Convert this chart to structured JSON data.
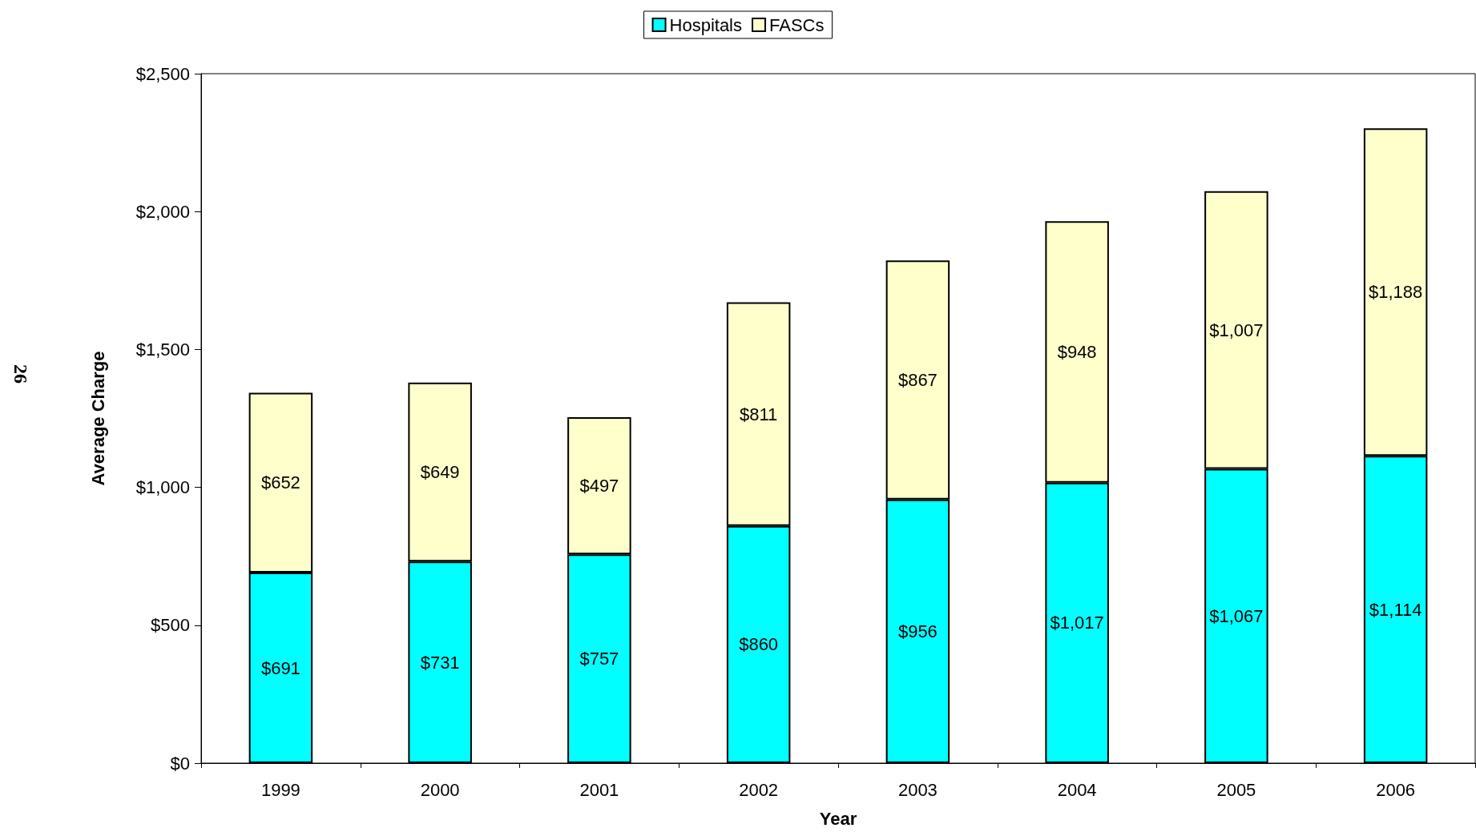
{
  "chart_data": {
    "type": "bar",
    "stacked": true,
    "xlabel": "Year",
    "ylabel": "Average Charge",
    "categories": [
      "1999",
      "2000",
      "2001",
      "2002",
      "2003",
      "2004",
      "2005",
      "2006"
    ],
    "series": [
      {
        "name": "Hospitals",
        "color": "#00ffff",
        "values": [
          691,
          731,
          757,
          860,
          956,
          1017,
          1067,
          1114
        ],
        "value_labels": [
          "$691",
          "$731",
          "$757",
          "$860",
          "$956",
          "$1,017",
          "$1,067",
          "$1,114"
        ]
      },
      {
        "name": "FASCs",
        "color": "#ffffcc",
        "values": [
          652,
          649,
          497,
          811,
          867,
          948,
          1007,
          1188
        ],
        "value_labels": [
          "$652",
          "$649",
          "$497",
          "$811",
          "$867",
          "$948",
          "$1,007",
          "$1,188"
        ]
      }
    ],
    "ylim": [
      0,
      2500
    ],
    "yticks": [
      {
        "value": 0,
        "label": "$0"
      },
      {
        "value": 500,
        "label": "$500"
      },
      {
        "value": 1000,
        "label": "$1,000"
      },
      {
        "value": 1500,
        "label": "$1,500"
      },
      {
        "value": 2000,
        "label": "$2,000"
      },
      {
        "value": 2500,
        "label": "$2,500"
      }
    ],
    "grid": false,
    "legend": "top",
    "annotations": [
      "26"
    ]
  }
}
